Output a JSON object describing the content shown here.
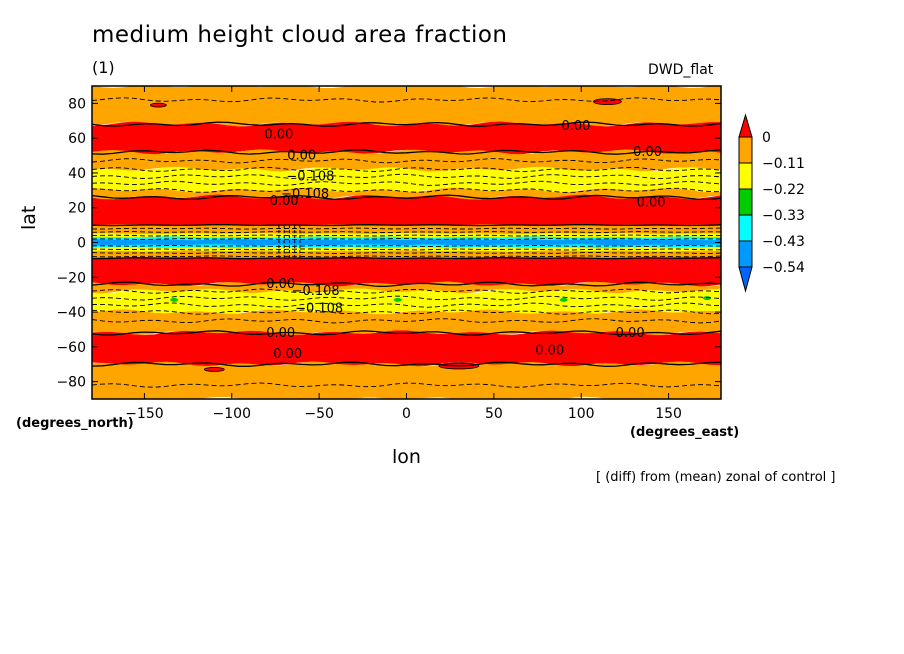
{
  "title": "medium height cloud area fraction",
  "subtitle": "(1)",
  "model": "DWD_flat",
  "note": "[ (diff) from (mean) zonal of control ]",
  "chart_data": {
    "type": "heatmap",
    "title": "medium height cloud area fraction",
    "xlabel": "lon",
    "ylabel": "lat",
    "x_units": "(degrees_east)",
    "y_units": "(degrees_north)",
    "xlim": [
      -180,
      180
    ],
    "ylim": [
      -90,
      90
    ],
    "x_ticks": [
      -150,
      -100,
      -50,
      0,
      50,
      100,
      150
    ],
    "y_ticks": [
      80,
      60,
      40,
      20,
      0,
      -20,
      -40,
      -60,
      -80
    ],
    "colorbar": {
      "labels": [
        "0",
        "−0.11",
        "−0.22",
        "−0.33",
        "−0.43",
        "−0.54"
      ],
      "colors": [
        "#ff0000",
        "#ffa500",
        "#ffff00",
        "#00cc00",
        "#00ffff",
        "#0099ff",
        "#0066ff"
      ]
    },
    "zonal_bands": [
      {
        "lat_from": 90,
        "lat_to": 68,
        "color": "#ffa500"
      },
      {
        "lat_from": 68,
        "lat_to": 52,
        "color": "#ff0000"
      },
      {
        "lat_from": 52,
        "lat_to": 42,
        "color": "#ffa500"
      },
      {
        "lat_from": 42,
        "lat_to": 30,
        "color": "#ffff00"
      },
      {
        "lat_from": 30,
        "lat_to": 26,
        "color": "#ffa500"
      },
      {
        "lat_from": 26,
        "lat_to": 10,
        "color": "#ff0000"
      },
      {
        "lat_from": 10,
        "lat_to": 5,
        "color": "#ffa500"
      },
      {
        "lat_from": 5,
        "lat_to": 3,
        "color": "#ffff00"
      },
      {
        "lat_from": 3,
        "lat_to": 1.5,
        "color": "#00ffff"
      },
      {
        "lat_from": 1.5,
        "lat_to": -1.5,
        "color": "#0099ff"
      },
      {
        "lat_from": -1.5,
        "lat_to": -3,
        "color": "#00ffff"
      },
      {
        "lat_from": -3,
        "lat_to": -5,
        "color": "#ffff00"
      },
      {
        "lat_from": -5,
        "lat_to": -9,
        "color": "#ffa500"
      },
      {
        "lat_from": -9,
        "lat_to": -24,
        "color": "#ff0000"
      },
      {
        "lat_from": -24,
        "lat_to": -28,
        "color": "#ffa500"
      },
      {
        "lat_from": -28,
        "lat_to": -40,
        "color": "#ffff00"
      },
      {
        "lat_from": -40,
        "lat_to": -52,
        "color": "#ffa500"
      },
      {
        "lat_from": -52,
        "lat_to": -70,
        "color": "#ff0000"
      },
      {
        "lat_from": -70,
        "lat_to": -90,
        "color": "#ffa500"
      }
    ],
    "contour_lines": [
      {
        "lat": 68,
        "style": "solid"
      },
      {
        "lat": 52,
        "style": "solid"
      },
      {
        "lat": 47,
        "style": "dashed"
      },
      {
        "lat": 42,
        "style": "dashed"
      },
      {
        "lat": 38,
        "style": "dashed"
      },
      {
        "lat": 34,
        "style": "dashed"
      },
      {
        "lat": 30,
        "style": "dashed"
      },
      {
        "lat": 26,
        "style": "solid"
      },
      {
        "lat": 10,
        "style": "solid"
      },
      {
        "lat": 8,
        "style": "dashed"
      },
      {
        "lat": 6,
        "style": "dashed"
      },
      {
        "lat": 4,
        "style": "dashed"
      },
      {
        "lat": 2,
        "style": "dashed"
      },
      {
        "lat": -2,
        "style": "dashed"
      },
      {
        "lat": -4,
        "style": "dashed"
      },
      {
        "lat": -6,
        "style": "dashed"
      },
      {
        "lat": -8,
        "style": "dashed"
      },
      {
        "lat": -9,
        "style": "solid"
      },
      {
        "lat": -24,
        "style": "solid"
      },
      {
        "lat": -28,
        "style": "dashed"
      },
      {
        "lat": -32,
        "style": "dashed"
      },
      {
        "lat": -36,
        "style": "dashed"
      },
      {
        "lat": -40,
        "style": "dashed"
      },
      {
        "lat": -45,
        "style": "dashed"
      },
      {
        "lat": -52,
        "style": "solid"
      },
      {
        "lat": -70,
        "style": "solid"
      },
      {
        "lat": 82,
        "style": "dashed"
      },
      {
        "lat": -82,
        "style": "dashed"
      }
    ],
    "contour_labels": [
      {
        "text": "0.00",
        "lon": -73,
        "lat": 62
      },
      {
        "text": "0.00",
        "lon": 97,
        "lat": 67
      },
      {
        "text": "0.00",
        "lon": -60,
        "lat": 50
      },
      {
        "text": "0.00",
        "lon": 138,
        "lat": 52
      },
      {
        "text": "−0.108",
        "lon": -55,
        "lat": 38
      },
      {
        "text": "−0.108",
        "lon": -58,
        "lat": 28
      },
      {
        "text": "0.00",
        "lon": -70,
        "lat": 24
      },
      {
        "text": "0.00",
        "lon": 140,
        "lat": 23
      },
      {
        "text": "−0.108",
        "lon": -52,
        "lat": -28
      },
      {
        "text": "0.00",
        "lon": -72,
        "lat": -24
      },
      {
        "text": "−0.108",
        "lon": -50,
        "lat": -38
      },
      {
        "text": "0.00",
        "lon": -72,
        "lat": -52
      },
      {
        "text": "0.00",
        "lon": 128,
        "lat": -52
      },
      {
        "text": "0.00",
        "lon": -68,
        "lat": -64
      },
      {
        "text": "0.00",
        "lon": 82,
        "lat": -62
      }
    ]
  }
}
